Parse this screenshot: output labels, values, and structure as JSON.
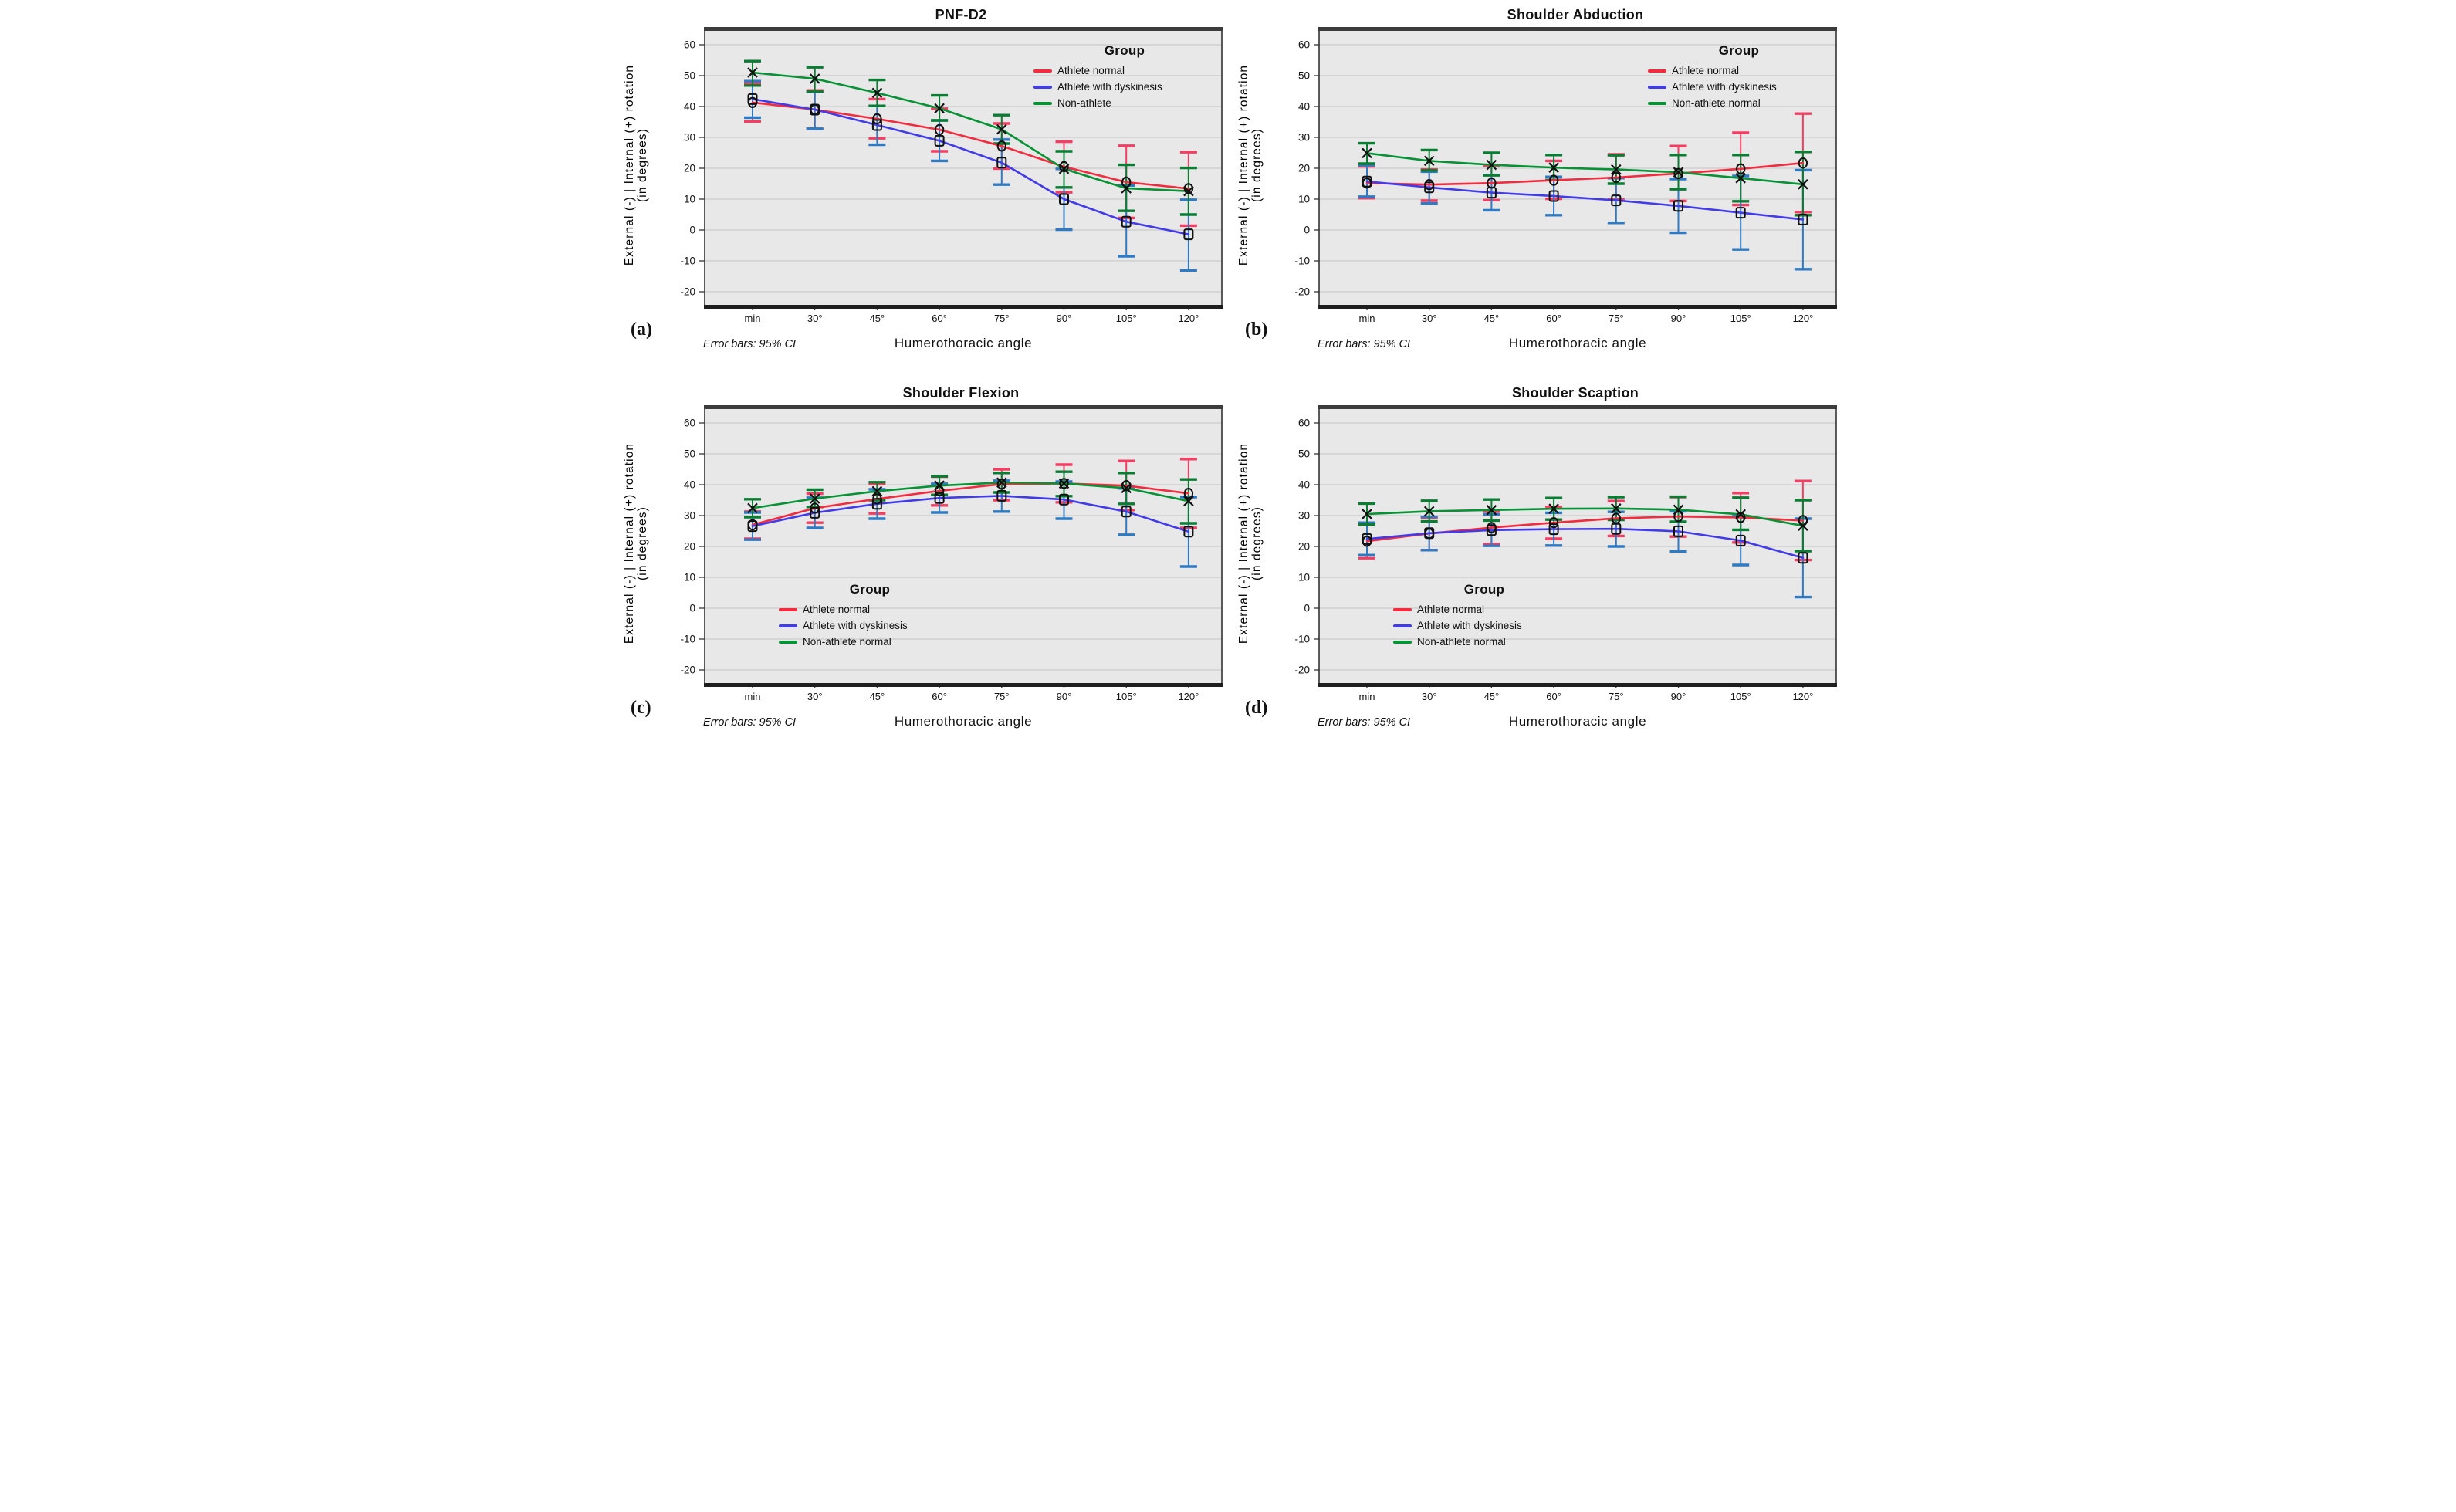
{
  "figure": {
    "ylabel_line1": "External (-) | Internal (+) rotation",
    "ylabel_line2": "(in degrees)",
    "xlabel": "Humerothoracic angle",
    "error_note": "Error bars: 95% CI",
    "legend_title": "Group",
    "categories": [
      "min",
      "30°",
      "45°",
      "60°",
      "75°",
      "90°",
      "105°",
      "120°"
    ],
    "yticks": [
      60,
      50,
      40,
      30,
      20,
      10,
      0,
      -10,
      -20
    ],
    "colors": {
      "athlete_normal_line": "#f32b3e",
      "athlete_normal_error": "#f23e63",
      "dyskinesis_line": "#423be8",
      "dyskinesis_error": "#2f7ac2",
      "non_athlete_line": "#079235",
      "non_athlete_error": "#0a7c33",
      "marker": "#111111",
      "plot_bg": "#e8e8e8",
      "gridline": "#c3c3c3",
      "frame": "#333333"
    }
  },
  "chart_data": [
    {
      "type": "line",
      "letter": "(a)",
      "title": "PNF-D2",
      "xlabel": "Humerothoracic angle",
      "ylim": [
        -25,
        65
      ],
      "grid": true,
      "legend_position": "top-right",
      "categories": [
        "min",
        "30°",
        "45°",
        "60°",
        "75°",
        "90°",
        "105°",
        "120°"
      ],
      "series": [
        {
          "name": "Athlete normal",
          "color": "athlete_normal",
          "marker": "circle",
          "values": [
            41.3,
            39.0,
            36.0,
            32.5,
            27.2,
            20.5,
            15.5,
            13.4
          ],
          "ci_lo": [
            35.1,
            32.8,
            29.7,
            25.5,
            19.9,
            12.2,
            3.9,
            1.4
          ],
          "ci_hi": [
            47.5,
            45.2,
            42.4,
            39.3,
            34.5,
            28.6,
            27.3,
            25.2
          ]
        },
        {
          "name": "Athlete with dyskinesis",
          "color": "dyskinesis",
          "marker": "square",
          "values": [
            42.4,
            39.0,
            34.0,
            28.9,
            21.8,
            10.0,
            2.7,
            -1.4
          ],
          "ci_lo": [
            36.4,
            32.8,
            27.6,
            22.4,
            14.7,
            0.1,
            -8.5,
            -13.1
          ],
          "ci_hi": [
            48.2,
            44.8,
            40.2,
            35.5,
            29.3,
            19.8,
            14.4,
            9.8
          ]
        },
        {
          "name": "Non-athlete",
          "color": "non_athlete",
          "marker": "x",
          "values": [
            51.0,
            49.0,
            44.4,
            39.4,
            32.6,
            19.8,
            13.5,
            12.6
          ],
          "ci_lo": [
            46.8,
            44.9,
            40.2,
            35.5,
            28.0,
            13.8,
            6.2,
            5.0
          ],
          "ci_hi": [
            54.7,
            52.7,
            48.6,
            43.6,
            37.2,
            25.5,
            21.1,
            20.1
          ]
        }
      ]
    },
    {
      "type": "line",
      "letter": "(b)",
      "title": "Shoulder Abduction",
      "xlabel": "Humerothoracic angle",
      "ylim": [
        -25,
        65
      ],
      "grid": true,
      "legend_position": "top-right",
      "categories": [
        "min",
        "30°",
        "45°",
        "60°",
        "75°",
        "90°",
        "105°",
        "120°"
      ],
      "series": [
        {
          "name": "Athlete normal",
          "color": "athlete_normal",
          "marker": "circle",
          "values": [
            15.2,
            14.7,
            15.2,
            16.1,
            17.0,
            18.3,
            19.8,
            21.7
          ],
          "ci_lo": [
            10.3,
            9.5,
            9.7,
            10.1,
            9.9,
            9.4,
            8.1,
            5.8
          ],
          "ci_hi": [
            20.6,
            19.6,
            20.9,
            22.4,
            24.5,
            27.2,
            31.5,
            37.7
          ]
        },
        {
          "name": "Athlete with dyskinesis",
          "color": "dyskinesis",
          "marker": "square",
          "values": [
            15.7,
            13.8,
            12.1,
            11.0,
            9.6,
            7.8,
            5.6,
            3.4
          ],
          "ci_lo": [
            10.8,
            8.6,
            6.4,
            4.8,
            2.3,
            -0.9,
            -6.3,
            -12.7
          ],
          "ci_hi": [
            21.0,
            18.9,
            17.8,
            17.2,
            16.8,
            16.5,
            17.5,
            19.4
          ]
        },
        {
          "name": "Non-athlete normal",
          "color": "non_athlete",
          "marker": "x",
          "values": [
            24.9,
            22.4,
            21.1,
            20.2,
            19.6,
            18.7,
            16.8,
            14.8
          ],
          "ci_lo": [
            21.5,
            19.3,
            17.7,
            16.2,
            15.0,
            13.2,
            9.3,
            4.8
          ],
          "ci_hi": [
            28.1,
            25.9,
            25.0,
            24.3,
            24.2,
            24.3,
            24.3,
            25.3
          ]
        }
      ]
    },
    {
      "type": "line",
      "letter": "(c)",
      "title": "Shoulder Flexion",
      "xlabel": "Humerothoracic angle",
      "ylim": [
        -25,
        65
      ],
      "grid": true,
      "legend_position": "bottom-left",
      "categories": [
        "min",
        "30°",
        "45°",
        "60°",
        "75°",
        "90°",
        "105°",
        "120°"
      ],
      "series": [
        {
          "name": "Athlete normal",
          "color": "athlete_normal",
          "marker": "circle",
          "values": [
            27.0,
            32.4,
            35.4,
            38.0,
            40.2,
            40.4,
            39.7,
            37.2
          ],
          "ci_lo": [
            22.5,
            27.7,
            30.7,
            33.3,
            35.0,
            34.3,
            31.8,
            26.0
          ],
          "ci_hi": [
            31.3,
            37.1,
            40.2,
            42.6,
            45.0,
            46.5,
            47.7,
            48.3
          ]
        },
        {
          "name": "Athlete with dyskinesis",
          "color": "dyskinesis",
          "marker": "square",
          "values": [
            26.6,
            30.9,
            33.8,
            35.7,
            36.4,
            35.2,
            31.3,
            24.8
          ],
          "ci_lo": [
            22.2,
            26.0,
            29.0,
            31.0,
            31.3,
            29.0,
            23.8,
            13.5
          ],
          "ci_hi": [
            31.0,
            35.8,
            38.5,
            40.3,
            41.3,
            41.0,
            38.8,
            36.0
          ]
        },
        {
          "name": "Non-athlete normal",
          "color": "non_athlete",
          "marker": "x",
          "values": [
            32.4,
            35.5,
            37.9,
            39.7,
            40.7,
            40.4,
            38.9,
            34.7
          ],
          "ci_lo": [
            29.5,
            32.8,
            35.0,
            36.7,
            37.5,
            36.3,
            33.8,
            27.5
          ],
          "ci_hi": [
            35.3,
            38.4,
            40.8,
            42.7,
            43.8,
            44.2,
            43.8,
            41.7
          ]
        }
      ]
    },
    {
      "type": "line",
      "letter": "(d)",
      "title": "Shoulder Scaption",
      "xlabel": "Humerothoracic angle",
      "ylim": [
        -25,
        65
      ],
      "grid": true,
      "legend_position": "bottom-left",
      "categories": [
        "min",
        "30°",
        "45°",
        "60°",
        "75°",
        "90°",
        "105°",
        "120°"
      ],
      "series": [
        {
          "name": "Athlete normal",
          "color": "athlete_normal",
          "marker": "circle",
          "values": [
            21.7,
            24.2,
            26.1,
            27.7,
            29.1,
            29.7,
            29.4,
            28.4
          ],
          "ci_lo": [
            16.2,
            18.8,
            20.8,
            22.5,
            23.4,
            23.2,
            21.3,
            15.6
          ],
          "ci_hi": [
            27.2,
            29.3,
            31.3,
            32.8,
            34.7,
            36.0,
            37.3,
            41.2
          ]
        },
        {
          "name": "Athlete with dyskinesis",
          "color": "dyskinesis",
          "marker": "square",
          "values": [
            22.4,
            24.3,
            25.3,
            25.6,
            25.7,
            24.9,
            21.9,
            16.3
          ],
          "ci_lo": [
            17.2,
            18.8,
            20.2,
            20.3,
            20.0,
            18.4,
            14.0,
            3.6
          ],
          "ci_hi": [
            27.7,
            29.6,
            30.4,
            30.9,
            31.2,
            31.4,
            29.8,
            29.0
          ]
        },
        {
          "name": "Non-athlete normal",
          "color": "non_athlete",
          "marker": "x",
          "values": [
            30.5,
            31.4,
            31.8,
            32.2,
            32.3,
            31.9,
            30.4,
            26.7
          ],
          "ci_lo": [
            27.1,
            28.1,
            28.4,
            28.7,
            28.6,
            28.0,
            25.4,
            18.5
          ],
          "ci_hi": [
            33.9,
            34.8,
            35.2,
            35.7,
            36.0,
            36.1,
            35.8,
            35.0
          ]
        }
      ]
    }
  ]
}
